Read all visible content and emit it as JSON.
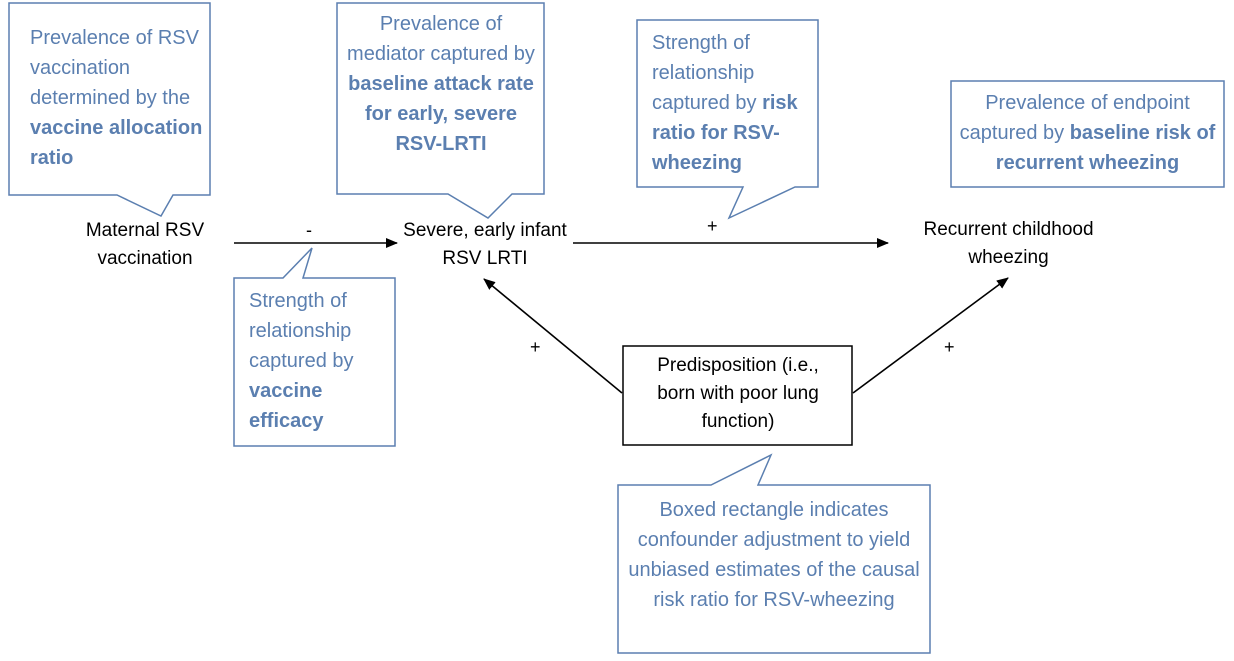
{
  "colors": {
    "callout_border": "#5b7fb0",
    "callout_text": "#5b7fb0",
    "node_text": "#000000",
    "arrow": "#000000"
  },
  "nodes": {
    "vaccination": "Maternal RSV vaccination",
    "lrti": "Severe, early infant RSV LRTI",
    "wheezing": "Recurrent childhood wheezing",
    "predisposition": "Predisposition (i.e., born with poor lung function)"
  },
  "edges": {
    "vaccination_to_lrti": "-",
    "lrti_to_wheezing": "+",
    "predisposition_to_lrti": "+",
    "predisposition_to_wheezing": "+"
  },
  "callouts": {
    "vaccine_allocation": {
      "text": "Prevalence of RSV vaccination determined by the",
      "bold": "vaccine allocation ratio"
    },
    "baseline_attack": {
      "text": "Prevalence of mediator captured by",
      "bold": "baseline attack rate for early, severe RSV-LRTI"
    },
    "risk_ratio": {
      "text": "Strength of relationship captured by",
      "bold": "risk ratio for RSV-wheezing"
    },
    "baseline_risk": {
      "text": "Prevalence of endpoint captured by",
      "bold": "baseline risk of recurrent wheezing"
    },
    "vaccine_efficacy": {
      "text": "Strength of relationship captured by",
      "bold": "vaccine efficacy"
    },
    "confounder": {
      "text": "Boxed rectangle indicates confounder adjustment to yield unbiased estimates of the causal risk ratio for RSV-wheezing"
    }
  }
}
